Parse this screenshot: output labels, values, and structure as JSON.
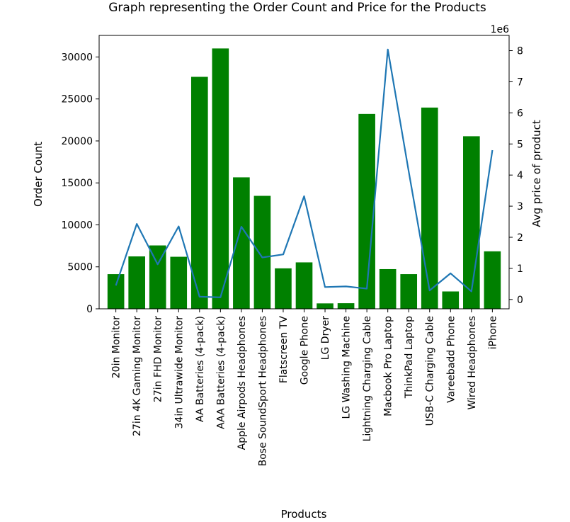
{
  "chart_data": {
    "type": "bar",
    "title": "Graph representing the Order Count and Price for the Products",
    "xlabel": "Products",
    "ylabel": "Order Count",
    "y2label": "Avg price of product",
    "y2_offset_text": "1e6",
    "categories": [
      "20in Monitor",
      "27in 4K Gaming Monitor",
      "27in FHD Monitor",
      "34in Ultrawide Monitor",
      "AA Batteries (4-pack)",
      "AAA Batteries (4-pack)",
      "Apple Airpods Headphones",
      "Bose SoundSport Headphones",
      "Flatscreen TV",
      "Google Phone",
      "LG Dryer",
      "LG Washing Machine",
      "Lightning Charging Cable",
      "Macbook Pro Laptop",
      "ThinkPad Laptop",
      "USB-C Charging Cable",
      "Vareebadd Phone",
      "Wired Headphones",
      "iPhone"
    ],
    "series": [
      {
        "axis": "left",
        "type": "bar",
        "color": "#008000",
        "values": [
          4129,
          6244,
          7550,
          6199,
          27635,
          31017,
          15661,
          13457,
          4819,
          5532,
          646,
          666,
          23217,
          4728,
          4130,
          23975,
          2068,
          20557,
          6849
        ]
      },
      {
        "axis": "right",
        "type": "line",
        "color": "#1f77b4",
        "values": [
          450000,
          2430000,
          1130000,
          2350000,
          90000,
          70000,
          2340000,
          1350000,
          1450000,
          3320000,
          400000,
          420000,
          350000,
          8040000,
          4120000,
          290000,
          840000,
          260000,
          4800000
        ]
      }
    ],
    "ylim": [
      0,
      32570
    ],
    "yticks": [
      "0",
      "5000",
      "10000",
      "15000",
      "20000",
      "25000",
      "30000"
    ],
    "y2lim": [
      -300000,
      8490000
    ],
    "y2ticks": [
      "0",
      "1",
      "2",
      "3",
      "4",
      "5",
      "6",
      "7",
      "8"
    ],
    "grid": false
  }
}
